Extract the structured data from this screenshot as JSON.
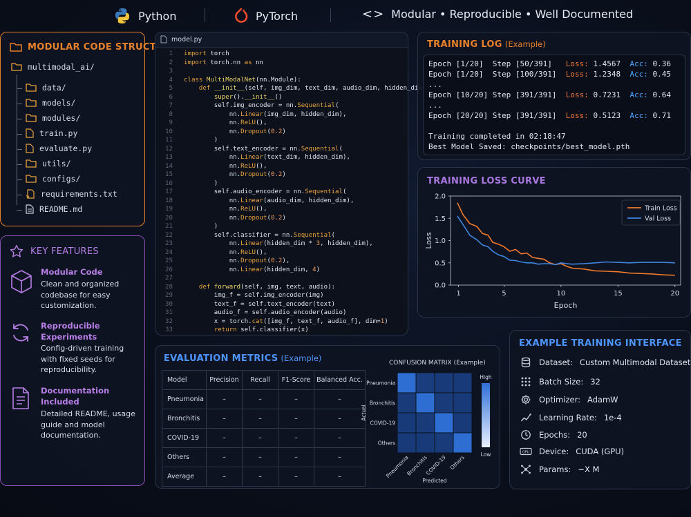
{
  "header": {
    "python_label": "Python",
    "pytorch_label": "PyTorch",
    "tagline": "Modular • Reproducible • Well Documented"
  },
  "structure": {
    "title": "MODULAR CODE STRUCTURE",
    "root": "multimodal_ai/",
    "items": [
      {
        "name": "data/",
        "icon": "folder-icon"
      },
      {
        "name": "models/",
        "icon": "folder-icon"
      },
      {
        "name": "modules/",
        "icon": "folder-icon"
      },
      {
        "name": "train.py",
        "icon": "python-file-icon"
      },
      {
        "name": "evaluate.py",
        "icon": "python-file-icon"
      },
      {
        "name": "utils/",
        "icon": "folder-icon"
      },
      {
        "name": "configs/",
        "icon": "folder-icon"
      },
      {
        "name": "requirements.txt",
        "icon": "text-file-icon"
      },
      {
        "name": "README.md",
        "icon": "markdown-file-icon"
      }
    ]
  },
  "features": {
    "title": "KEY FEATURES",
    "items": [
      {
        "title": "Modular Code",
        "desc": "Clean and organized codebase for easy customization.",
        "icon": "cube-icon"
      },
      {
        "title": "Reproducible Experiments",
        "desc": "Config-driven training with fixed seeds for reproducibility.",
        "icon": "refresh-icon"
      },
      {
        "title": "Documentation Included",
        "desc": "Detailed README, usage guide and model documentation.",
        "icon": "document-icon"
      }
    ]
  },
  "editor": {
    "tab": "model.py",
    "lines": [
      "import torch",
      "import torch.nn as nn",
      "",
      "class MultiModalNet(nn.Module):",
      "    def __init__(self, img_dim, text_dim, audio_dim, hidden_dim):",
      "        super().__init__()",
      "        self.img_encoder = nn.Sequential(",
      "            nn.Linear(img_dim, hidden_dim),",
      "            nn.ReLU(),",
      "            nn.Dropout(0.2)",
      "        )",
      "        self.text_encoder = nn.Sequential(",
      "            nn.Linear(text_dim, hidden_dim),",
      "            nn.ReLU(),",
      "            nn.Dropout(0.2)",
      "        )",
      "        self.audio_encoder = nn.Sequential(",
      "            nn.Linear(audio_dim, hidden_dim),",
      "            nn.ReLU(),",
      "            nn.Dropout(0.2)",
      "        )",
      "        self.classifier = nn.Sequential(",
      "            nn.Linear(hidden_dim * 3, hidden_dim),",
      "            nn.ReLU(),",
      "            nn.Dropout(0.2),",
      "            nn.Linear(hidden_dim, 4)",
      "",
      "    def forward(self, img, text, audio):",
      "        img_f = self.img_encoder(img)",
      "        text_f = self.text_encoder(text)",
      "        audio_f = self.audio_encoder(audio)",
      "        x = torch.cat([img_f, text_f, audio_f], dim=1)",
      "        return self.classifier(x)"
    ]
  },
  "training_log": {
    "title": "TRAINING LOG",
    "subtitle": "(Example)",
    "entries": [
      {
        "epoch": "Epoch [1/20]",
        "step": "Step [50/391]",
        "loss_label": "Loss:",
        "loss": "1.4567",
        "acc_label": "Acc:",
        "acc": "0.36"
      },
      {
        "epoch": "Epoch [1/20]",
        "step": "Step [100/391]",
        "loss_label": "Loss:",
        "loss": "1.2348",
        "acc_label": "Acc:",
        "acc": "0.45"
      },
      {
        "ellipsis": "..."
      },
      {
        "epoch": "Epoch [10/20]",
        "step": "Step [391/391]",
        "loss_label": "Loss:",
        "loss": "0.7231",
        "acc_label": "Acc:",
        "acc": "0.64"
      },
      {
        "ellipsis": "..."
      },
      {
        "epoch": "Epoch [20/20]",
        "step": "Step [391/391]",
        "loss_label": "Loss:",
        "loss": "0.5123",
        "acc_label": "Acc:",
        "acc": "0.71"
      }
    ],
    "completed": "Training completed in 02:18:47",
    "best_model": "Best Model Saved: checkpoints/best_model.pth"
  },
  "chart_data": {
    "type": "line",
    "title": "TRAINING LOSS CURVE",
    "xlabel": "Epoch",
    "ylabel": "Loss",
    "xlim": [
      0.3,
      20.5
    ],
    "ylim": [
      0,
      2.0
    ],
    "xticks": [
      1,
      5,
      10,
      15,
      20
    ],
    "yticks": [
      0.0,
      0.5,
      1.0,
      1.5,
      2.0
    ],
    "legend_position": "top-right",
    "grid": false,
    "x": [
      0.9,
      1.4,
      2,
      2.6,
      3.1,
      3.6,
      4,
      4.5,
      5,
      5.5,
      6,
      6.5,
      7,
      7.5,
      8,
      8.5,
      9,
      9.5,
      10,
      10.5,
      11,
      12,
      13,
      14,
      15,
      16,
      17,
      18,
      19,
      20
    ],
    "series": [
      {
        "name": "Train Loss",
        "color": "#f07a2a",
        "values": [
          1.85,
          1.58,
          1.38,
          1.32,
          1.16,
          1.12,
          0.96,
          0.92,
          0.86,
          0.76,
          0.8,
          0.7,
          0.72,
          0.62,
          0.6,
          0.58,
          0.5,
          0.46,
          0.48,
          0.42,
          0.38,
          0.36,
          0.32,
          0.31,
          0.3,
          0.27,
          0.26,
          0.25,
          0.23,
          0.22
        ]
      },
      {
        "name": "Val Loss",
        "color": "#3f86e0",
        "values": [
          1.55,
          1.36,
          1.12,
          1.02,
          0.9,
          0.86,
          0.76,
          0.68,
          0.64,
          0.56,
          0.55,
          0.52,
          0.5,
          0.5,
          0.47,
          0.48,
          0.48,
          0.46,
          0.5,
          0.48,
          0.47,
          0.48,
          0.5,
          0.52,
          0.51,
          0.5,
          0.51,
          0.51,
          0.51,
          0.5
        ]
      }
    ]
  },
  "metrics": {
    "title": "EVALUATION METRICS",
    "subtitle": "(Example)",
    "columns": [
      "Model",
      "Precision",
      "Recall",
      "F1-Score",
      "Balanced Acc."
    ],
    "rows": [
      [
        "Pneumonia",
        "–",
        "–",
        "–",
        "–"
      ],
      [
        "Bronchitis",
        "–",
        "–",
        "–",
        "–"
      ],
      [
        "COVID-19",
        "–",
        "–",
        "–",
        "–"
      ],
      [
        "Others",
        "–",
        "–",
        "–",
        "–"
      ],
      [
        "Average",
        "–",
        "–",
        "–",
        "–"
      ]
    ]
  },
  "confusion": {
    "title": "CONFUSION MATRIX (Example)",
    "row_labels": [
      "Pneumonia",
      "Bronchitis",
      "COVID-19",
      "Others"
    ],
    "col_labels": [
      "Pneumonia",
      "Bronchitis",
      "COVID-19",
      "Others"
    ],
    "ylabel": "Actual",
    "xlabel": "Predicted",
    "high_label": "High",
    "low_label": "Low",
    "values": [
      [
        1.0,
        0.15,
        0.1,
        0.1
      ],
      [
        0.12,
        1.0,
        0.12,
        0.1
      ],
      [
        0.1,
        0.12,
        1.0,
        0.1
      ],
      [
        0.1,
        0.1,
        0.12,
        1.0
      ]
    ]
  },
  "interface": {
    "title": "EXAMPLE TRAINING INTERFACE",
    "rows": [
      {
        "label": "Dataset:",
        "value": "Custom Multimodal Dataset",
        "icon": "database-icon"
      },
      {
        "label": "Batch Size:",
        "value": "32",
        "icon": "grid-dots-icon"
      },
      {
        "label": "Optimizer:",
        "value": "AdamW",
        "icon": "gear-icon"
      },
      {
        "label": "Learning Rate:",
        "value": "1e-4",
        "icon": "trend-icon"
      },
      {
        "label": "Epochs:",
        "value": "20",
        "icon": "clock-icon"
      },
      {
        "label": "Device:",
        "value": "CUDA (GPU)",
        "icon": "gpu-icon"
      },
      {
        "label": "Params:",
        "value": "~X M",
        "icon": "nodes-icon"
      }
    ]
  },
  "colors": {
    "orange": "#e8812a",
    "purple": "#8a4fb5",
    "blue_title": "#4d94ff",
    "loss_text": "#f07a3a",
    "acc_text": "#4da3ff"
  }
}
